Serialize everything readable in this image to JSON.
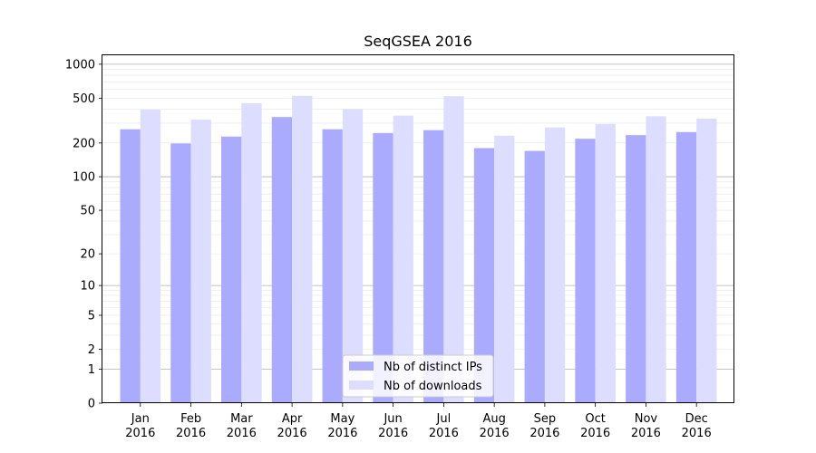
{
  "chart_data": {
    "type": "bar",
    "title": "SeqGSEA 2016",
    "xlabel": "",
    "ylabel": "",
    "y_scale": "log(1 + y)",
    "ylim": [
      0,
      1200
    ],
    "yticks": [
      "0",
      "1",
      "2",
      "5",
      "10",
      "20",
      "50",
      "100",
      "200",
      "500",
      "1000"
    ],
    "ytick_values": [
      0,
      1,
      2,
      5,
      10,
      20,
      50,
      100,
      200,
      500,
      1000
    ],
    "categories": [
      [
        "Jan",
        "2016"
      ],
      [
        "Feb",
        "2016"
      ],
      [
        "Mar",
        "2016"
      ],
      [
        "Apr",
        "2016"
      ],
      [
        "May",
        "2016"
      ],
      [
        "Jun",
        "2016"
      ],
      [
        "Jul",
        "2016"
      ],
      [
        "Aug",
        "2016"
      ],
      [
        "Sep",
        "2016"
      ],
      [
        "Oct",
        "2016"
      ],
      [
        "Nov",
        "2016"
      ],
      [
        "Dec",
        "2016"
      ]
    ],
    "series": [
      {
        "name": "Nb of distinct IPs",
        "color": "#aaaaff",
        "values": [
          265,
          198,
          228,
          340,
          265,
          245,
          260,
          180,
          170,
          218,
          235,
          250
        ]
      },
      {
        "name": "Nb of downloads",
        "color": "#ddddff",
        "values": [
          395,
          322,
          452,
          525,
          400,
          350,
          520,
          232,
          275,
          295,
          345,
          330
        ]
      }
    ],
    "grid": true,
    "legend_position": "bottom-center"
  }
}
